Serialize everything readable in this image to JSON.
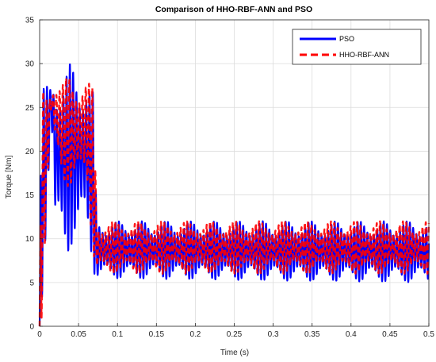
{
  "chart_data": {
    "type": "line",
    "title": "Comparison of HHO-RBF-ANN and PSO",
    "xlabel": "Time (s)",
    "ylabel": "Torque [Nm]",
    "xlim": [
      0,
      0.5
    ],
    "ylim": [
      0,
      35
    ],
    "xticks": [
      0,
      0.05,
      0.1,
      0.15,
      0.2,
      0.25,
      0.3,
      0.35,
      0.4,
      0.45,
      0.5
    ],
    "xtick_labels": [
      "0",
      "0.05",
      "0.1",
      "0.15",
      "0.2",
      "0.25",
      "0.3",
      "0.35",
      "0.4",
      "0.45",
      "0.5"
    ],
    "yticks": [
      0,
      5,
      10,
      15,
      20,
      25,
      30,
      35
    ],
    "ytick_labels": [
      "0",
      "5",
      "10",
      "15",
      "20",
      "25",
      "30",
      "35"
    ],
    "grid": true,
    "legend_position": "top-right",
    "series": [
      {
        "name": "PSO",
        "color": "#0000ff",
        "style": "solid",
        "envelope": [
          {
            "t": 0.0,
            "min": 0.0,
            "max": 0.0
          },
          {
            "t": 0.002,
            "min": 0.0,
            "max": 27.5
          },
          {
            "t": 0.015,
            "min": 24.0,
            "max": 27.5
          },
          {
            "t": 0.02,
            "min": 9.2,
            "max": 30.0
          },
          {
            "t": 0.03,
            "min": 9.5,
            "max": 29.0
          },
          {
            "t": 0.035,
            "min": 8.0,
            "max": 29.5
          },
          {
            "t": 0.04,
            "min": 9.0,
            "max": 30.2
          },
          {
            "t": 0.05,
            "min": 9.5,
            "max": 29.5
          },
          {
            "t": 0.06,
            "min": 11.0,
            "max": 29.0
          },
          {
            "t": 0.07,
            "min": 6.0,
            "max": 26.5
          },
          {
            "t": 0.073,
            "min": 5.5,
            "max": 12.0
          },
          {
            "t": 0.5,
            "min": 5.0,
            "max": 12.0
          }
        ]
      },
      {
        "name": "HHO-RBF-ANN",
        "color": "#ff0000",
        "style": "dashed",
        "envelope": [
          {
            "t": 0.0,
            "min": 0.0,
            "max": 0.0
          },
          {
            "t": 0.002,
            "min": 0.0,
            "max": 27.0
          },
          {
            "t": 0.015,
            "min": 24.5,
            "max": 27.0
          },
          {
            "t": 0.02,
            "min": 20.0,
            "max": 28.5
          },
          {
            "t": 0.03,
            "min": 17.0,
            "max": 28.0
          },
          {
            "t": 0.04,
            "min": 15.0,
            "max": 29.0
          },
          {
            "t": 0.05,
            "min": 16.0,
            "max": 28.5
          },
          {
            "t": 0.06,
            "min": 18.0,
            "max": 28.0
          },
          {
            "t": 0.07,
            "min": 6.5,
            "max": 27.5
          },
          {
            "t": 0.073,
            "min": 6.0,
            "max": 12.0
          },
          {
            "t": 0.5,
            "min": 6.0,
            "max": 12.0
          }
        ]
      }
    ]
  }
}
